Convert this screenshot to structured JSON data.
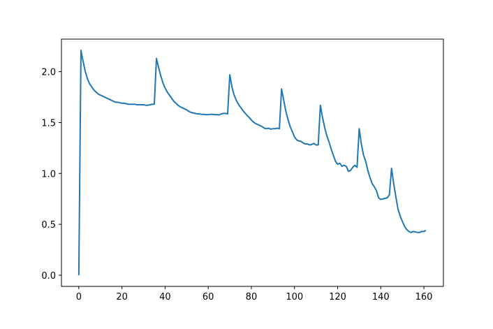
{
  "chart_data": {
    "type": "line",
    "x": [
      0,
      1,
      2,
      3,
      4,
      5,
      6,
      7,
      8,
      9,
      10,
      11,
      12,
      13,
      14,
      15,
      16,
      17,
      18,
      19,
      20,
      21,
      22,
      23,
      24,
      25,
      26,
      27,
      28,
      29,
      30,
      31,
      32,
      33,
      34,
      35,
      36,
      37,
      38,
      39,
      40,
      41,
      42,
      43,
      44,
      45,
      46,
      47,
      48,
      49,
      50,
      51,
      52,
      53,
      54,
      55,
      56,
      57,
      58,
      59,
      60,
      61,
      62,
      63,
      64,
      65,
      66,
      67,
      68,
      69,
      70,
      71,
      72,
      73,
      74,
      75,
      76,
      77,
      78,
      79,
      80,
      81,
      82,
      83,
      84,
      85,
      86,
      87,
      88,
      89,
      90,
      91,
      92,
      93,
      94,
      95,
      96,
      97,
      98,
      99,
      100,
      101,
      102,
      103,
      104,
      105,
      106,
      107,
      108,
      109,
      110,
      111,
      112,
      113,
      114,
      115,
      116,
      117,
      118,
      119,
      120,
      121,
      122,
      123,
      124,
      125,
      126,
      127,
      128,
      129,
      130,
      131,
      132,
      133,
      134,
      135,
      136,
      137,
      138,
      139,
      140,
      141,
      142,
      143,
      144,
      145,
      146,
      147,
      148,
      149,
      150,
      151,
      152,
      153,
      154,
      155,
      156,
      157,
      158,
      159,
      160,
      161
    ],
    "series": [
      {
        "color": "#1f77b4",
        "values": [
          0,
          2.21,
          2.1,
          2.0,
          1.93,
          1.88,
          1.85,
          1.82,
          1.8,
          1.78,
          1.77,
          1.76,
          1.75,
          1.74,
          1.73,
          1.72,
          1.71,
          1.7,
          1.7,
          1.695,
          1.69,
          1.69,
          1.685,
          1.68,
          1.68,
          1.68,
          1.68,
          1.675,
          1.675,
          1.675,
          1.675,
          1.67,
          1.67,
          1.675,
          1.68,
          1.68,
          2.13,
          2.04,
          1.96,
          1.89,
          1.84,
          1.8,
          1.77,
          1.74,
          1.71,
          1.69,
          1.67,
          1.655,
          1.645,
          1.635,
          1.625,
          1.61,
          1.6,
          1.595,
          1.59,
          1.585,
          1.585,
          1.58,
          1.58,
          1.578,
          1.578,
          1.58,
          1.58,
          1.578,
          1.578,
          1.575,
          1.585,
          1.59,
          1.59,
          1.585,
          1.97,
          1.85,
          1.77,
          1.72,
          1.68,
          1.65,
          1.62,
          1.595,
          1.57,
          1.55,
          1.525,
          1.505,
          1.49,
          1.48,
          1.47,
          1.46,
          1.445,
          1.44,
          1.445,
          1.435,
          1.44,
          1.44,
          1.445,
          1.44,
          1.83,
          1.72,
          1.61,
          1.53,
          1.46,
          1.41,
          1.36,
          1.33,
          1.32,
          1.315,
          1.3,
          1.29,
          1.29,
          1.28,
          1.285,
          1.295,
          1.28,
          1.28,
          1.67,
          1.55,
          1.45,
          1.37,
          1.31,
          1.24,
          1.18,
          1.12,
          1.09,
          1.1,
          1.07,
          1.08,
          1.07,
          1.02,
          1.03,
          1.06,
          1.08,
          1.06,
          1.44,
          1.29,
          1.18,
          1.12,
          1.03,
          0.96,
          0.9,
          0.87,
          0.83,
          0.76,
          0.745,
          0.75,
          0.755,
          0.76,
          0.79,
          1.05,
          0.9,
          0.77,
          0.65,
          0.58,
          0.53,
          0.48,
          0.45,
          0.43,
          0.42,
          0.43,
          0.425,
          0.42,
          0.42,
          0.43,
          0.43,
          0.44
        ]
      }
    ],
    "xlim": [
      -8.05,
      169.05
    ],
    "xticks": [
      0,
      20,
      40,
      60,
      80,
      100,
      120,
      140,
      160
    ],
    "ylim": [
      -0.11,
      2.32
    ],
    "yticks": [
      {
        "value": 0,
        "label": "0.0"
      },
      0.5,
      {
        "value": 1,
        "label": "1.0"
      },
      1.5,
      {
        "value": 2,
        "label": "2.0"
      }
    ]
  }
}
